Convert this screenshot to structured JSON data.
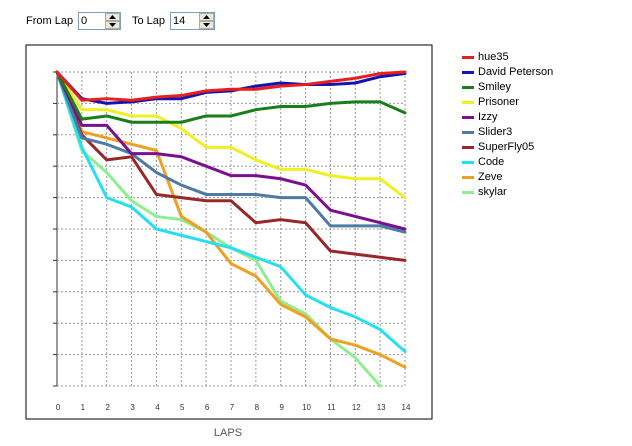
{
  "controls": {
    "from_lap_label": "From Lap",
    "from_lap_value": "0",
    "to_lap_label": "To Lap",
    "to_lap_value": "14"
  },
  "chart_data": {
    "type": "line",
    "xlabel": "LAPS",
    "x": [
      0,
      1,
      2,
      3,
      4,
      5,
      6,
      7,
      8,
      9,
      10,
      11,
      12,
      13,
      14
    ],
    "xlim": [
      0,
      14
    ],
    "ylim": [
      10,
      0
    ],
    "y_axis_tick_labels": "none",
    "grid": true,
    "legend_position": "right",
    "series": [
      {
        "name": "hue35",
        "color": "#e8201c",
        "values": [
          0,
          0.9,
          0.85,
          0.9,
          0.8,
          0.75,
          0.6,
          0.55,
          0.55,
          0.45,
          0.4,
          0.3,
          0.2,
          0.05,
          0
        ]
      },
      {
        "name": "David Peterson",
        "color": "#1414b4",
        "values": [
          0,
          0.85,
          1.0,
          0.95,
          0.85,
          0.85,
          0.65,
          0.6,
          0.45,
          0.35,
          0.4,
          0.4,
          0.35,
          0.15,
          0.05
        ]
      },
      {
        "name": "Smiley",
        "color": "#1a7f1a",
        "values": [
          0,
          1.5,
          1.4,
          1.6,
          1.6,
          1.6,
          1.4,
          1.4,
          1.2,
          1.1,
          1.1,
          1.0,
          0.95,
          0.95,
          1.3
        ]
      },
      {
        "name": "Prisoner",
        "color": "#f0f020",
        "values": [
          0,
          1.2,
          1.2,
          1.4,
          1.4,
          1.8,
          2.4,
          2.4,
          2.8,
          3.1,
          3.1,
          3.3,
          3.4,
          3.4,
          4.0
        ]
      },
      {
        "name": "Izzy",
        "color": "#7a1090",
        "values": [
          0,
          1.7,
          1.7,
          2.6,
          2.6,
          2.7,
          3.0,
          3.3,
          3.3,
          3.4,
          3.6,
          4.4,
          4.6,
          4.8,
          5.0
        ]
      },
      {
        "name": "Slider3",
        "color": "#4e7aa6",
        "values": [
          0,
          2.1,
          2.3,
          2.6,
          3.2,
          3.6,
          3.9,
          3.9,
          3.9,
          4.0,
          4.0,
          4.9,
          4.9,
          4.9,
          5.1
        ]
      },
      {
        "name": "SuperFly05",
        "color": "#982828",
        "values": [
          0,
          2.0,
          2.8,
          2.7,
          3.9,
          4.0,
          4.1,
          4.1,
          4.8,
          4.7,
          4.8,
          5.7,
          5.8,
          5.9,
          6.0
        ]
      },
      {
        "name": "Code",
        "color": "#22e0f0",
        "values": [
          0,
          2.4,
          4.0,
          4.3,
          5.0,
          5.2,
          5.4,
          5.6,
          5.9,
          6.2,
          7.1,
          7.5,
          7.8,
          8.2,
          8.9
        ]
      },
      {
        "name": "Zeve",
        "color": "#f0a020",
        "values": [
          0,
          1.9,
          2.1,
          2.3,
          2.5,
          4.6,
          5.1,
          6.1,
          6.5,
          7.4,
          7.8,
          8.5,
          8.7,
          9.0,
          9.4
        ]
      },
      {
        "name": "skylar",
        "color": "#90ee90",
        "values": [
          0,
          2.5,
          3.2,
          4.1,
          4.6,
          4.7,
          5.1,
          5.6,
          6.0,
          7.3,
          7.7,
          8.5,
          9.1,
          10.0,
          null
        ]
      }
    ]
  }
}
